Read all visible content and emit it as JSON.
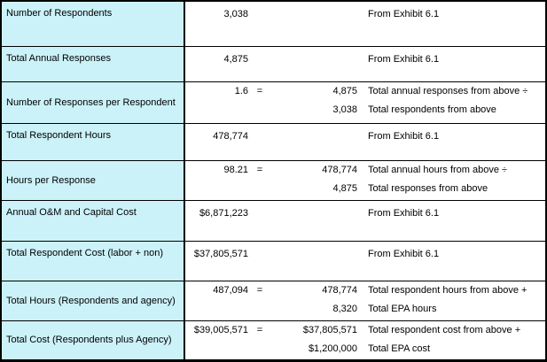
{
  "colors": {
    "label_bg": "#cbf2f9",
    "border": "#000000",
    "text": "#000000",
    "background": "#ffffff"
  },
  "rows": [
    {
      "type": "simple",
      "label": "Number of Respondents",
      "value": "3,038",
      "source": "From Exhibit 6.1"
    },
    {
      "type": "simple",
      "label": "Total Annual Responses",
      "value": "4,875",
      "source": "From Exhibit 6.1"
    },
    {
      "type": "formula",
      "label": "Number of Responses per Respondent",
      "result": "1.6",
      "eq": "=",
      "lines": [
        {
          "num": "4,875",
          "desc": "Total annual responses from above ÷"
        },
        {
          "num": "3,038",
          "desc": "Total respondents from above"
        }
      ]
    },
    {
      "type": "simple",
      "label": "Total Respondent Hours",
      "value": "478,774",
      "source": "From Exhibit 6.1"
    },
    {
      "type": "formula",
      "label": "Hours per Response",
      "result": "98.21",
      "eq": "=",
      "lines": [
        {
          "num": "478,774",
          "desc": "Total annual hours from above ÷"
        },
        {
          "num": "4,875",
          "desc": "Total responses from above"
        }
      ]
    },
    {
      "type": "simple",
      "label": "Annual O&M and Capital Cost",
      "value": "$6,871,223",
      "source": "From Exhibit 6.1"
    },
    {
      "type": "simple",
      "label": "Total Respondent Cost (labor + non)",
      "value": "$37,805,571",
      "source": "From Exhibit 6.1"
    },
    {
      "type": "formula",
      "label": "Total Hours (Respondents and agency)",
      "result": "487,094",
      "eq": "=",
      "lines": [
        {
          "num": "478,774",
          "desc": "Total respondent hours from above +"
        },
        {
          "num": "8,320",
          "desc": "Total EPA hours"
        }
      ]
    },
    {
      "type": "formula",
      "label": "Total Cost (Respondents plus Agency)",
      "result": "$39,005,571",
      "eq": "=",
      "lines": [
        {
          "num": "$37,805,571",
          "desc": "Total respondent cost from above +"
        },
        {
          "num": "$1,200,000",
          "desc": "Total EPA cost"
        }
      ]
    }
  ]
}
